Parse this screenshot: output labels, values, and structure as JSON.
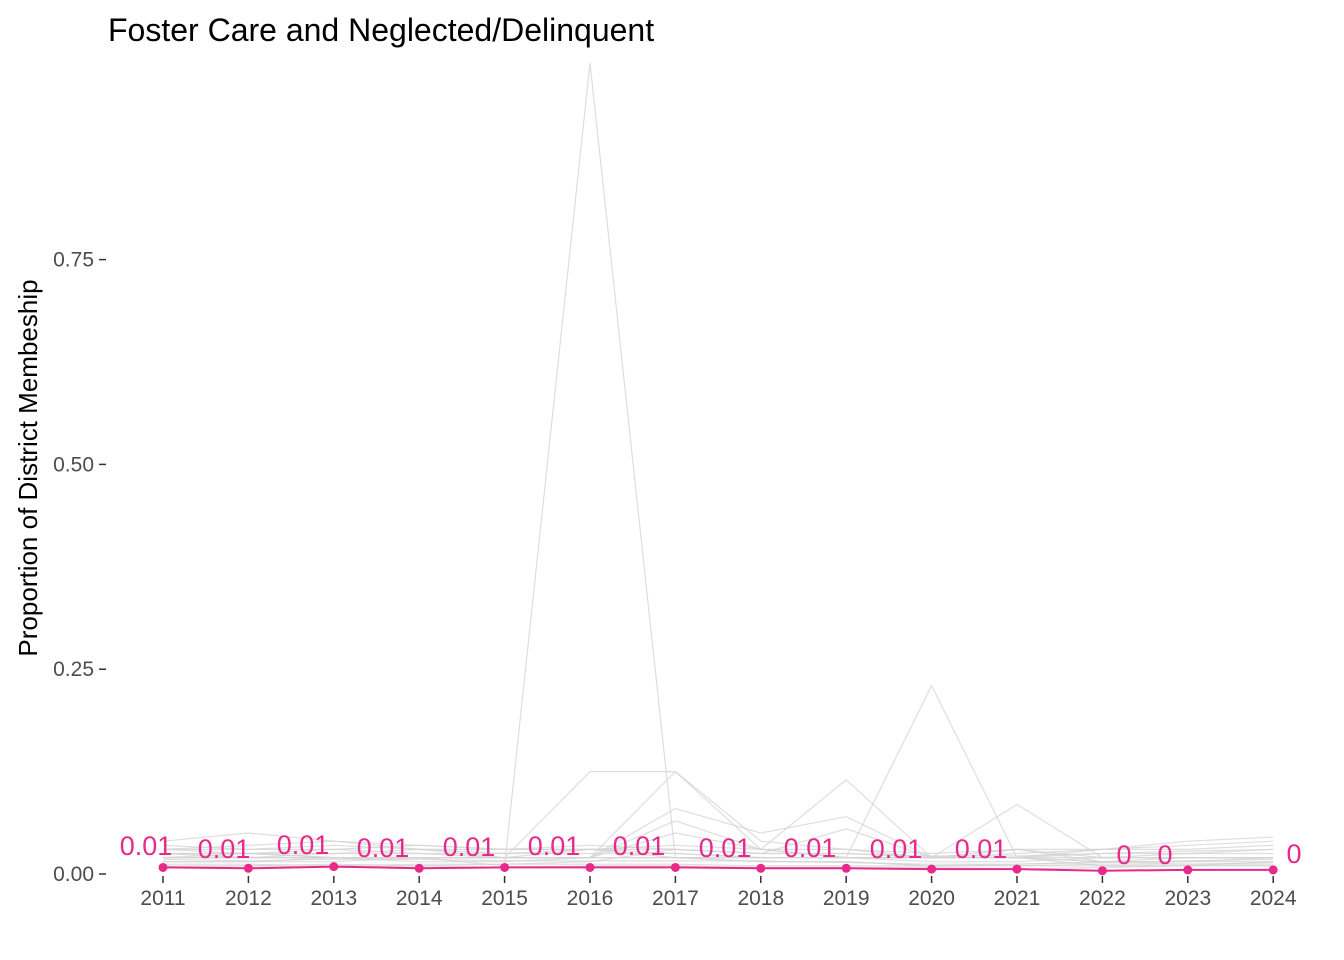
{
  "chart_data": {
    "type": "line",
    "title": "Foster Care and Neglected/Delinquent",
    "xlabel": "",
    "ylabel": "Proportion of District Membeship",
    "x": [
      2011,
      2012,
      2013,
      2014,
      2015,
      2016,
      2017,
      2018,
      2019,
      2020,
      2021,
      2022,
      2023,
      2024
    ],
    "x_tick_labels": [
      "2011",
      "2012",
      "2013",
      "2014",
      "2015",
      "2016",
      "2017",
      "2018",
      "2019",
      "2020",
      "2021",
      "2022",
      "2023",
      "2024"
    ],
    "ylim": [
      0,
      0.99
    ],
    "y_ticks": [
      0,
      0.25,
      0.5,
      0.75
    ],
    "y_tick_labels": [
      "0.00",
      "0.25",
      "0.50",
      "0.75"
    ],
    "grid": false,
    "highlight_series": {
      "color": "#e7298a",
      "values": [
        0.008,
        0.007,
        0.009,
        0.007,
        0.008,
        0.008,
        0.008,
        0.007,
        0.007,
        0.006,
        0.006,
        0.004,
        0.005,
        0.005
      ],
      "labels": [
        "0.01",
        "0.01",
        "0.01",
        "0.01",
        "0.01",
        "0.01",
        "0.01",
        "0.01",
        "0.01",
        "0.01",
        "0.01",
        "0",
        "0",
        "0"
      ]
    },
    "background_series": {
      "color": "#d3d3d3",
      "series": [
        {
          "values": [
            0.04,
            0.05,
            0.04,
            0.03,
            0.02,
            0.03,
            0.02,
            0.02,
            0.02,
            0.02,
            0.02,
            0.03,
            0.04,
            0.045
          ]
        },
        {
          "values": [
            0.03,
            0.035,
            0.04,
            0.035,
            0.03,
            0.035,
            0.03,
            0.025,
            0.025,
            0.02,
            0.025,
            0.03,
            0.035,
            0.04
          ]
        },
        {
          "values": [
            0.035,
            0.03,
            0.03,
            0.035,
            0.03,
            0.03,
            0.035,
            0.03,
            0.03,
            0.025,
            0.03,
            0.03,
            0.03,
            0.035
          ]
        },
        {
          "values": [
            0.02,
            0.025,
            0.02,
            0.02,
            0.02,
            0.02,
            0.02,
            0.02,
            0.02,
            0.015,
            0.015,
            0.02,
            0.025,
            0.03
          ]
        },
        {
          "values": [
            0.025,
            0.02,
            0.025,
            0.03,
            0.025,
            0.03,
            0.025,
            0.02,
            0.02,
            0.02,
            0.02,
            0.025,
            0.025,
            0.025
          ]
        },
        {
          "values": [
            0.015,
            0.015,
            0.02,
            0.015,
            0.015,
            0.02,
            0.02,
            0.015,
            0.015,
            0.01,
            0.012,
            0.015,
            0.02,
            0.02
          ]
        },
        {
          "values": [
            0.03,
            0.025,
            0.03,
            0.025,
            0.02,
            0.125,
            0.125,
            0.04,
            0.03,
            0.02,
            0.02,
            0.015,
            0.015,
            0.02
          ]
        },
        {
          "values": [
            0.02,
            0.02,
            0.02,
            0.02,
            0.01,
            0.99,
            0.02,
            0.015,
            0.015,
            0.01,
            0.01,
            0.01,
            0.01,
            0.015
          ]
        },
        {
          "values": [
            0.02,
            0.02,
            0.02,
            0.02,
            0.02,
            0.02,
            0.125,
            0.03,
            0.02,
            0.02,
            0.02,
            0.015,
            0.015,
            0.015
          ]
        },
        {
          "values": [
            0.025,
            0.025,
            0.02,
            0.02,
            0.02,
            0.02,
            0.08,
            0.05,
            0.07,
            0.02,
            0.085,
            0.02,
            0.02,
            0.02
          ]
        },
        {
          "values": [
            0.015,
            0.015,
            0.015,
            0.02,
            0.02,
            0.02,
            0.065,
            0.03,
            0.115,
            0.02,
            0.03,
            0.02,
            0.02,
            0.02
          ]
        },
        {
          "values": [
            0.02,
            0.02,
            0.02,
            0.02,
            0.02,
            0.02,
            0.05,
            0.03,
            0.02,
            0.23,
            0.02,
            0.01,
            0.01,
            0.01
          ]
        },
        {
          "values": [
            0.01,
            0.01,
            0.012,
            0.01,
            0.012,
            0.015,
            0.03,
            0.025,
            0.055,
            0.02,
            0.03,
            0.015,
            0.012,
            0.012
          ]
        },
        {
          "values": [
            0.025,
            0.025,
            0.025,
            0.025,
            0.025,
            0.025,
            0.025,
            0.02,
            0.02,
            0.02,
            0.02,
            0.02,
            0.02,
            0.02
          ]
        },
        {
          "values": [
            0.018,
            0.016,
            0.018,
            0.018,
            0.016,
            0.016,
            0.016,
            0.016,
            0.014,
            0.012,
            0.012,
            0.014,
            0.016,
            0.018
          ]
        },
        {
          "values": [
            0.012,
            0.012,
            0.01,
            0.012,
            0.012,
            0.012,
            0.012,
            0.01,
            0.01,
            0.01,
            0.01,
            0.012,
            0.012,
            0.014
          ]
        },
        {
          "values": [
            0.03,
            0.03,
            0.035,
            0.03,
            0.03,
            0.03,
            0.03,
            0.025,
            0.025,
            0.022,
            0.022,
            0.025,
            0.028,
            0.03
          ]
        },
        {
          "values": [
            0.008,
            0.01,
            0.008,
            0.01,
            0.008,
            0.01,
            0.01,
            0.008,
            0.008,
            0.008,
            0.006,
            0.008,
            0.01,
            0.01
          ]
        }
      ]
    }
  }
}
